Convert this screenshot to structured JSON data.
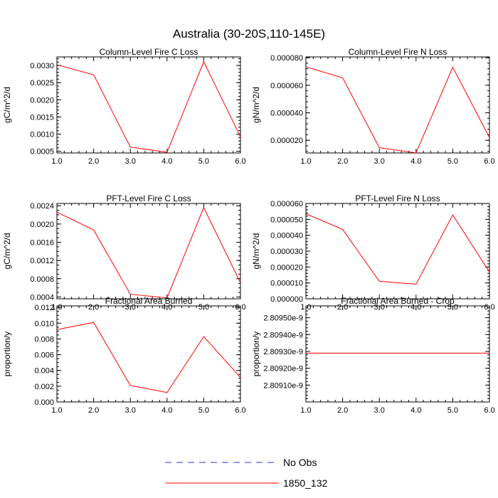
{
  "title": "Australia (30-20S,110-145E)",
  "legend": {
    "placement": "bottom-center",
    "entries": [
      {
        "label": "No Obs",
        "color": "#3333cc",
        "style": "dashed"
      },
      {
        "label": "1850_132",
        "color": "#ff0000",
        "style": "solid"
      }
    ]
  },
  "chart_data": [
    {
      "type": "line",
      "title": "Column-Level Fire C Loss",
      "ylabel": "gC/m^2/d",
      "xlim": [
        1.0,
        6.0
      ],
      "ylim": [
        0.00045,
        0.00325
      ],
      "xticks": [
        1,
        2,
        3,
        4,
        5,
        6
      ],
      "xtick_labels": [
        "1.0",
        "2.0",
        "3.0",
        "4.0",
        "5.0",
        "6.0"
      ],
      "yticks": [
        0.0005,
        0.001,
        0.0015,
        0.002,
        0.0025,
        0.003
      ],
      "ytick_labels": [
        "0.0005",
        "0.0010",
        "0.0015",
        "0.0020",
        "0.0025",
        "0.0030"
      ],
      "yminor": 0.0001,
      "series": [
        {
          "name": "1850_132",
          "color": "#ff0000",
          "x": [
            1,
            2,
            3,
            4,
            5,
            6
          ],
          "values": [
            0.00302,
            0.00273,
            0.00062,
            0.00047,
            0.00311,
            0.00092
          ]
        }
      ]
    },
    {
      "type": "line",
      "title": "Column-Level Fire N Loss",
      "ylabel": "gN/m^2/d",
      "xlim": [
        1.0,
        6.0
      ],
      "ylim": [
        1.08e-05,
        8.06e-05
      ],
      "xticks": [
        1,
        2,
        3,
        4,
        5,
        6
      ],
      "xtick_labels": [
        "1.0",
        "2.0",
        "3.0",
        "4.0",
        "5.0",
        "6.0"
      ],
      "yticks": [
        2e-05,
        4e-05,
        6e-05,
        8e-05
      ],
      "ytick_labels": [
        "0.000020",
        "0.000040",
        "0.000060",
        "0.000080"
      ],
      "yminor": 4e-06,
      "series": [
        {
          "name": "1850_132",
          "color": "#ff0000",
          "x": [
            1,
            2,
            3,
            4,
            5,
            6
          ],
          "values": [
            7.34e-05,
            6.54e-05,
            1.46e-05,
            1.09e-05,
            7.31e-05,
            2.2e-05
          ]
        }
      ]
    },
    {
      "type": "line",
      "title": "PFT-Level Fire C Loss",
      "ylabel": "gC/m^2/d",
      "xlim": [
        1.0,
        6.0
      ],
      "ylim": [
        0.00036,
        0.00245
      ],
      "xticks": [
        1,
        2,
        3,
        4,
        5,
        6
      ],
      "xtick_labels": [
        "1.0",
        "2.0",
        "3.0",
        "4.0",
        "5.0",
        "6.0"
      ],
      "yticks": [
        0.0004,
        0.0008,
        0.0012,
        0.0016,
        0.002,
        0.0024
      ],
      "ytick_labels": [
        "0.0004",
        "0.0008",
        "0.0012",
        "0.0016",
        "0.0020",
        "0.0024"
      ],
      "yminor": 0.0001,
      "series": [
        {
          "name": "1850_132",
          "color": "#ff0000",
          "x": [
            1,
            2,
            3,
            4,
            5,
            6
          ],
          "values": [
            0.00226,
            0.00187,
            0.00046,
            0.00038,
            0.00236,
            0.00071
          ]
        }
      ]
    },
    {
      "type": "line",
      "title": "PFT-Level Fire N Loss",
      "ylabel": "gN/m^2/d",
      "xlim": [
        1.0,
        6.0
      ],
      "ylim": [
        0.0,
        6e-05
      ],
      "xticks": [
        1,
        2,
        3,
        4,
        5,
        6
      ],
      "xtick_labels": [
        "1.0",
        "2.0",
        "3.0",
        "4.0",
        "5.0",
        "6.0"
      ],
      "yticks": [
        0.0,
        1e-05,
        2e-05,
        3e-05,
        4e-05,
        5e-05,
        6e-05
      ],
      "ytick_labels": [
        "0.000000",
        "0.000010",
        "0.000020",
        "0.000030",
        "0.000040",
        "0.000050",
        "0.000060"
      ],
      "yminor": 2e-06,
      "series": [
        {
          "name": "1850_132",
          "color": "#ff0000",
          "x": [
            1,
            2,
            3,
            4,
            5,
            6
          ],
          "values": [
            5.35e-05,
            4.37e-05,
            1.1e-05,
            9.2e-06,
            5.28e-05,
            1.68e-05
          ]
        }
      ]
    },
    {
      "type": "line",
      "title": "Fractional Area Burned",
      "ylabel": "proportion/y",
      "xlim": [
        1.0,
        6.0
      ],
      "ylim": [
        0.0,
        0.0122
      ],
      "xticks": [
        1,
        2,
        3,
        4,
        5,
        6
      ],
      "xtick_labels": [
        "1.0",
        "2.0",
        "3.0",
        "4.0",
        "5.0",
        "6.0"
      ],
      "yticks": [
        0.0,
        0.002,
        0.004,
        0.006,
        0.008,
        0.01,
        0.012
      ],
      "ytick_labels": [
        "0.000",
        "0.002",
        "0.004",
        "0.006",
        "0.008",
        "0.010",
        "0.012"
      ],
      "yminor": 0.0005,
      "series": [
        {
          "name": "1850_132",
          "color": "#ff0000",
          "x": [
            1,
            2,
            3,
            4,
            5,
            6
          ],
          "values": [
            0.0092,
            0.0101,
            0.0021,
            0.0012,
            0.0083,
            0.0031
          ]
        }
      ]
    },
    {
      "type": "line",
      "title": "Fractional Area Burned - Crop",
      "ylabel": "proportion/y",
      "xlim": [
        1.0,
        6.0
      ],
      "ylim": [
        2.809e-09,
        2.80957e-09
      ],
      "xticks": [
        1,
        2,
        3,
        4,
        5,
        6
      ],
      "xtick_labels": [
        "1.0",
        "2.0",
        "3.0",
        "4.0",
        "5.0",
        "6.0"
      ],
      "yticks": [
        2.8091e-09,
        2.8092e-09,
        2.8093e-09,
        2.8094e-09,
        2.8095e-09
      ],
      "ytick_labels": [
        "2.80910e-9",
        "2.80920e-9",
        "2.80930e-9",
        "2.80940e-9",
        "2.80950e-9"
      ],
      "yminor": 2e-14,
      "series": [
        {
          "name": "1850_132",
          "color": "#ff0000",
          "x": [
            1,
            2,
            3,
            4,
            5,
            6
          ],
          "values": [
            2.80929e-09,
            2.80929e-09,
            2.80929e-09,
            2.80929e-09,
            2.80929e-09,
            2.80929e-09
          ]
        }
      ]
    }
  ]
}
